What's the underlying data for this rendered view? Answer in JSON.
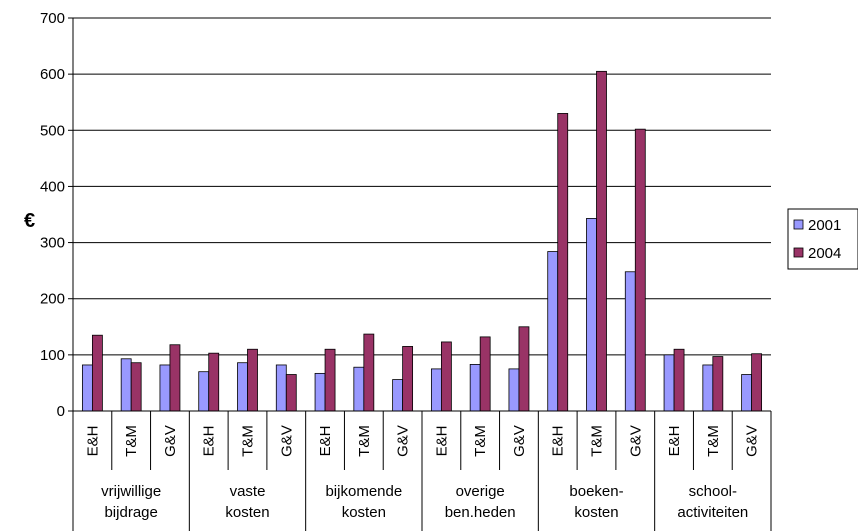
{
  "chart_data": {
    "type": "bar",
    "title": "",
    "xlabel": "",
    "ylabel": "€",
    "ylim": [
      0,
      700
    ],
    "yticks": [
      0,
      100,
      200,
      300,
      400,
      500,
      600,
      700
    ],
    "grid": true,
    "legend_position": "right",
    "groups": [
      {
        "label_lines": [
          "vrijwillige",
          "bijdrage"
        ],
        "categories": [
          "E&H",
          "T&M",
          "G&V"
        ]
      },
      {
        "label_lines": [
          "vaste",
          "kosten"
        ],
        "categories": [
          "E&H",
          "T&M",
          "G&V"
        ]
      },
      {
        "label_lines": [
          "bijkomende",
          "kosten"
        ],
        "categories": [
          "E&H",
          "T&M",
          "G&V"
        ]
      },
      {
        "label_lines": [
          "overige",
          "ben.heden"
        ],
        "categories": [
          "E&H",
          "T&M",
          "G&V"
        ]
      },
      {
        "label_lines": [
          "boeken-",
          "kosten"
        ],
        "categories": [
          "E&H",
          "T&M",
          "G&V"
        ]
      },
      {
        "label_lines": [
          "school-",
          "activiteiten"
        ],
        "categories": [
          "E&H",
          "T&M",
          "G&V"
        ]
      }
    ],
    "series": [
      {
        "name": "2001",
        "color": "#9999ff",
        "values": [
          82,
          93,
          82,
          70,
          86,
          82,
          67,
          78,
          56,
          75,
          83,
          75,
          284,
          343,
          248,
          100,
          82,
          65
        ]
      },
      {
        "name": "2004",
        "color": "#993366",
        "values": [
          135,
          86,
          118,
          103,
          110,
          65,
          110,
          137,
          115,
          123,
          132,
          150,
          530,
          605,
          502,
          110,
          97,
          102
        ]
      }
    ]
  }
}
